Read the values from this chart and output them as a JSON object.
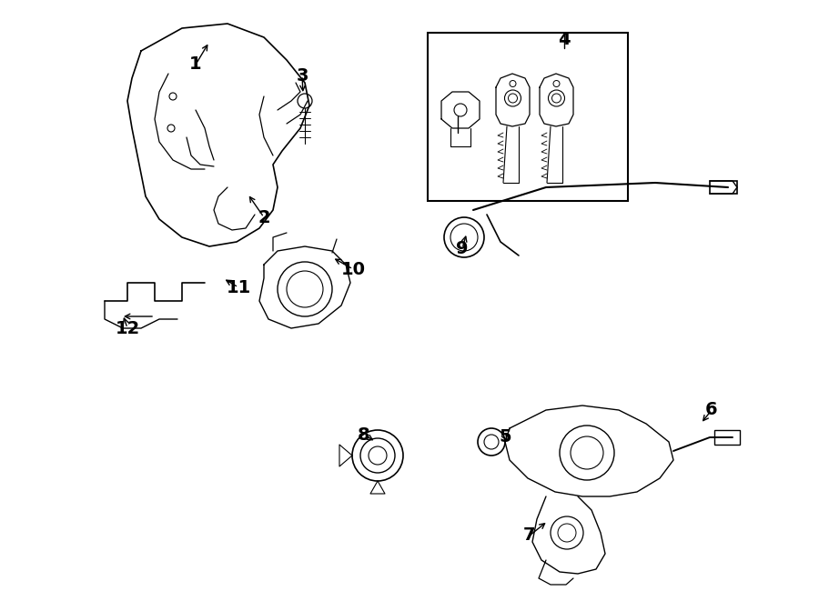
{
  "background_color": "#ffffff",
  "line_color": "#000000",
  "fig_width": 9.0,
  "fig_height": 6.61,
  "dpi": 100,
  "label_fontsize": 14
}
